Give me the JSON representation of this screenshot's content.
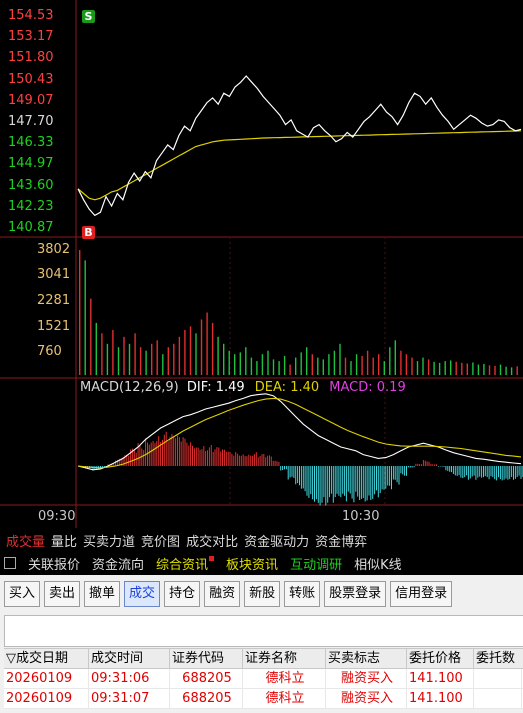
{
  "price_axis": [
    {
      "label": "154.53",
      "color": "#ff4040"
    },
    {
      "label": "153.17",
      "color": "#ff4040"
    },
    {
      "label": "151.80",
      "color": "#ff4040"
    },
    {
      "label": "150.43",
      "color": "#ff4040"
    },
    {
      "label": "149.07",
      "color": "#ff4040"
    },
    {
      "label": "147.70",
      "color": "#d8d8d8"
    },
    {
      "label": "146.33",
      "color": "#20d020"
    },
    {
      "label": "144.97",
      "color": "#20d020"
    },
    {
      "label": "143.60",
      "color": "#20d020"
    },
    {
      "label": "142.23",
      "color": "#20d020"
    },
    {
      "label": "140.87",
      "color": "#20d020"
    }
  ],
  "volume_axis": [
    "3802",
    "3041",
    "2281",
    "1521",
    "760"
  ],
  "markers": {
    "sell": "S",
    "buy": "B"
  },
  "macd": {
    "name": "MACD(12,26,9)",
    "dif_label": "DIF: 1.49",
    "dea_label": "DEA: 1.40",
    "macd_label": "MACD: 0.19"
  },
  "time_axis": [
    "09:30",
    "10:30"
  ],
  "tabs_row1": [
    {
      "label": "成交量",
      "active": true
    },
    {
      "label": "量比"
    },
    {
      "label": "买卖力道"
    },
    {
      "label": "竞价图"
    },
    {
      "label": "成交对比"
    },
    {
      "label": "资金驱动力"
    },
    {
      "label": "资金博弈"
    }
  ],
  "tabs_row2": [
    {
      "label": "关联报价",
      "color": "#dcdcdc"
    },
    {
      "label": "资金流向",
      "color": "#dcdcdc"
    },
    {
      "label": "综合资讯",
      "color": "#e0e000"
    },
    {
      "label": "板块资讯",
      "color": "#e0e000"
    },
    {
      "label": "互动调研",
      "color": "#20d020"
    },
    {
      "label": "相似K线",
      "color": "#dcdcdc"
    }
  ],
  "toolbar": [
    "买入",
    "卖出",
    "撤单",
    "成交",
    "持仓",
    "融资",
    "新股",
    "转账",
    "股票登录",
    "信用登录"
  ],
  "toolbar_active": "成交",
  "table": {
    "headers": [
      "成交日期",
      "成交时间",
      "证券代码",
      "证券名称",
      "买卖标志",
      "委托价格",
      "委托数"
    ],
    "rows": [
      [
        "20260109",
        "09:31:06",
        "688205",
        "德科立",
        "融资买入",
        "141.100",
        ""
      ],
      [
        "20260109",
        "09:31:07",
        "688205",
        "德科立",
        "融资买入",
        "141.100",
        ""
      ]
    ]
  },
  "chart_data": {
    "type": "line",
    "y_range": [
      140.87,
      154.53
    ],
    "price_series": [
      143.5,
      142.8,
      142.2,
      141.8,
      142.0,
      143.0,
      142.4,
      143.2,
      142.8,
      143.9,
      144.5,
      144.0,
      144.6,
      144.2,
      145.3,
      145.8,
      146.3,
      146.0,
      146.9,
      147.5,
      147.2,
      148.0,
      148.5,
      149.0,
      149.3,
      148.9,
      149.6,
      149.4,
      150.0,
      150.3,
      150.7,
      150.3,
      149.9,
      149.4,
      149.0,
      148.6,
      148.2,
      147.6,
      147.9,
      147.2,
      147.0,
      146.8,
      147.4,
      147.6,
      147.2,
      146.9,
      146.5,
      146.7,
      147.1,
      146.8,
      147.3,
      147.8,
      148.1,
      148.5,
      148.9,
      148.4,
      148.1,
      147.6,
      148.2,
      149.0,
      149.6,
      149.4,
      148.9,
      149.3,
      148.7,
      148.2,
      147.8,
      147.3,
      147.6,
      147.9,
      148.2,
      148.0,
      147.7,
      147.5,
      147.6,
      147.9,
      147.8,
      147.4,
      147.2,
      147.3
    ],
    "avg_series": [
      143.5,
      143.2,
      142.9,
      142.8,
      142.9,
      143.1,
      143.3,
      143.4,
      143.6,
      143.8,
      144.0,
      144.2,
      144.4,
      144.6,
      144.8,
      145.0,
      145.2,
      145.4,
      145.6,
      145.8,
      146.0,
      146.2,
      146.3,
      146.4,
      146.5,
      146.55,
      146.6,
      146.62,
      146.64,
      146.66,
      146.68,
      146.7,
      146.72,
      146.74,
      146.75,
      146.76,
      146.77,
      146.78,
      146.79,
      146.8,
      146.81,
      146.82,
      146.83,
      146.84,
      146.85,
      146.86,
      146.87,
      146.88,
      146.89,
      146.9,
      146.91,
      146.92,
      146.93,
      146.94,
      146.95,
      146.96,
      146.97,
      146.98,
      146.99,
      147.0,
      147.01,
      147.02,
      147.03,
      147.04,
      147.05,
      147.06,
      147.07,
      147.08,
      147.09,
      147.1,
      147.11,
      147.12,
      147.13,
      147.14,
      147.15,
      147.16,
      147.17,
      147.18,
      147.19,
      147.2
    ],
    "volume_max": 3802,
    "volumes": [
      3600,
      3300,
      2200,
      1500,
      1200,
      900,
      1300,
      800,
      1100,
      900,
      1200,
      800,
      700,
      900,
      1000,
      600,
      800,
      900,
      1100,
      1300,
      1400,
      1200,
      1600,
      1800,
      1500,
      1100,
      900,
      700,
      600,
      650,
      800,
      500,
      400,
      600,
      700,
      450,
      400,
      550,
      300,
      500,
      650,
      800,
      600,
      500,
      450,
      600,
      700,
      900,
      500,
      400,
      600,
      550,
      700,
      500,
      600,
      400,
      800,
      1000,
      700,
      600,
      500,
      400,
      500,
      450,
      380,
      350,
      400,
      420,
      380,
      350,
      330,
      360,
      300,
      320,
      280,
      260,
      300,
      240,
      220,
      250
    ],
    "volume_up": [
      true,
      false,
      true,
      false,
      true,
      false,
      true,
      false,
      true,
      false,
      true,
      true,
      false,
      true,
      true,
      false,
      true,
      true,
      true,
      true,
      true,
      false,
      true,
      true,
      true,
      false,
      false,
      false,
      false,
      false,
      false,
      false,
      false,
      false,
      false,
      false,
      false,
      false,
      true,
      false,
      false,
      false,
      true,
      false,
      false,
      false,
      false,
      false,
      true,
      false,
      false,
      true,
      true,
      true,
      true,
      false,
      false,
      false,
      true,
      true,
      true,
      false,
      false,
      true,
      false,
      false,
      false,
      false,
      true,
      true,
      true,
      false,
      false,
      false,
      true,
      true,
      false,
      false,
      false,
      true
    ],
    "dif": [
      0.0,
      -0.05,
      -0.1,
      -0.08,
      0.0,
      0.1,
      0.2,
      0.35,
      0.5,
      0.7,
      0.85,
      1.0,
      1.1,
      1.2,
      1.3,
      1.35,
      1.42,
      1.5,
      1.55,
      1.6,
      1.65,
      1.72,
      1.78,
      1.85,
      1.88,
      1.9,
      1.85,
      1.7,
      1.5,
      1.3,
      1.1,
      0.95,
      0.8,
      0.7,
      0.6,
      0.5,
      0.45,
      0.4,
      0.3,
      0.25,
      0.2,
      0.22,
      0.3,
      0.4,
      0.5,
      0.55,
      0.6,
      0.55,
      0.5,
      0.42,
      0.35,
      0.3,
      0.25,
      0.2,
      0.18,
      0.15,
      0.12,
      0.1,
      0.08,
      0.06
    ],
    "dea": [
      0.0,
      -0.02,
      -0.04,
      -0.05,
      -0.03,
      0.0,
      0.05,
      0.12,
      0.2,
      0.3,
      0.42,
      0.55,
      0.68,
      0.8,
      0.92,
      1.02,
      1.12,
      1.22,
      1.3,
      1.38,
      1.46,
      1.53,
      1.6,
      1.66,
      1.72,
      1.76,
      1.78,
      1.76,
      1.7,
      1.62,
      1.52,
      1.42,
      1.32,
      1.22,
      1.12,
      1.02,
      0.93,
      0.85,
      0.77,
      0.7,
      0.63,
      0.58,
      0.55,
      0.53,
      0.52,
      0.52,
      0.52,
      0.52,
      0.51,
      0.5,
      0.48,
      0.46,
      0.43,
      0.4,
      0.37,
      0.34,
      0.31,
      0.28,
      0.26,
      0.24
    ]
  }
}
